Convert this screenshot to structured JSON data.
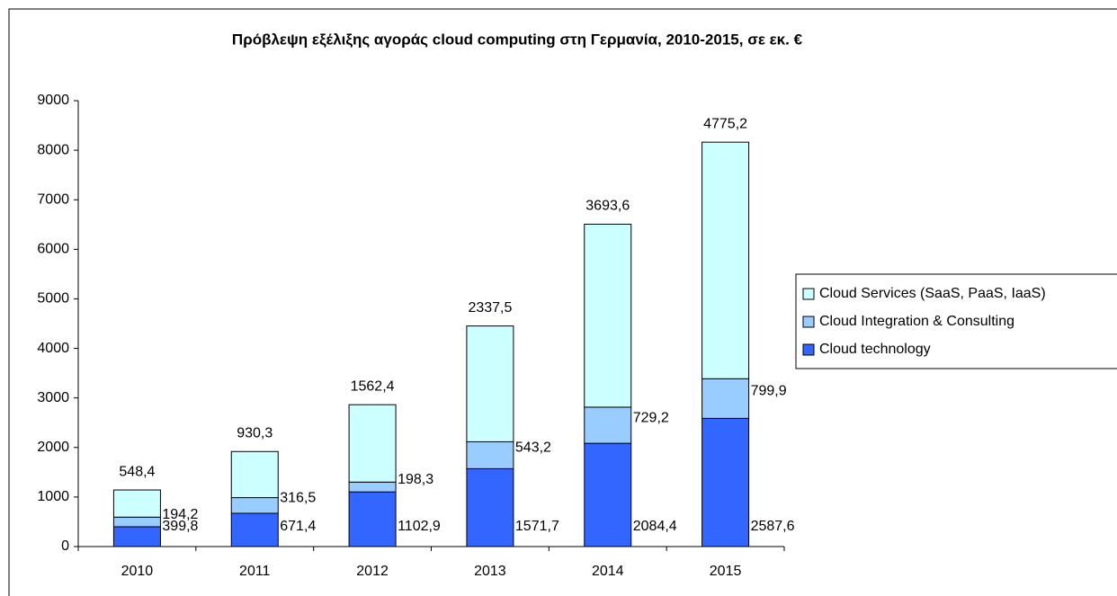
{
  "chart_data": {
    "type": "stacked_bar",
    "title": "Πρόβλεψη εξέλιξης αγοράς cloud computing στη Γερμανία, 2010-2015, σε εκ. €",
    "categories": [
      "2010",
      "2011",
      "2012",
      "2013",
      "2014",
      "2015"
    ],
    "series": [
      {
        "name": "Cloud technology",
        "color": "#3366ff",
        "values": [
          399.8,
          671.4,
          1102.9,
          1571.7,
          2084.4,
          2587.6
        ],
        "value_labels": [
          "399,8",
          "671,4",
          "1102,9",
          "1571,7",
          "2084,4",
          "2587,6"
        ]
      },
      {
        "name": "Cloud Integration & Consulting",
        "color": "#99ccff",
        "values": [
          194.2,
          316.5,
          198.3,
          543.2,
          729.2,
          799.9
        ],
        "value_labels": [
          "194,2",
          "316,5",
          "198,3",
          "543,2",
          "729,2",
          "799,9"
        ]
      },
      {
        "name": "Cloud Services (SaaS, PaaS, IaaS)",
        "color": "#ccffff",
        "values": [
          548.4,
          930.3,
          1562.4,
          2337.5,
          3693.6,
          4775.2
        ],
        "value_labels": [
          "548,4",
          "930,3",
          "1562,4",
          "2337,5",
          "3693,6",
          "4775,2"
        ]
      }
    ],
    "ylim": [
      0,
      9000
    ],
    "yticks": [
      0,
      1000,
      2000,
      3000,
      4000,
      5000,
      6000,
      7000,
      8000,
      9000
    ],
    "legend": "right"
  }
}
